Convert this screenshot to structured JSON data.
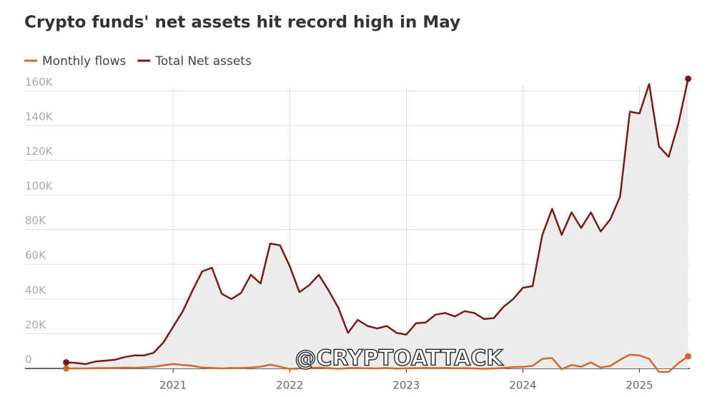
{
  "chart_data": {
    "type": "line",
    "title": "Crypto funds' net assets hit record high in May",
    "watermark": "@CRYPTOATTACK",
    "x": [
      2020.083,
      2020.167,
      2020.25,
      2020.333,
      2020.417,
      2020.5,
      2020.583,
      2020.667,
      2020.75,
      2020.833,
      2020.917,
      2021,
      2021.083,
      2021.167,
      2021.25,
      2021.333,
      2021.417,
      2021.5,
      2021.583,
      2021.667,
      2021.75,
      2021.833,
      2021.917,
      2022,
      2022.083,
      2022.167,
      2022.25,
      2022.333,
      2022.417,
      2022.5,
      2022.583,
      2022.667,
      2022.75,
      2022.833,
      2022.917,
      2023,
      2023.083,
      2023.167,
      2023.25,
      2023.333,
      2023.417,
      2023.5,
      2023.583,
      2023.667,
      2023.75,
      2023.833,
      2023.917,
      2024,
      2024.083,
      2024.167,
      2024.25,
      2024.333,
      2024.417,
      2024.5,
      2024.583,
      2024.667,
      2024.75,
      2024.833,
      2024.917,
      2025,
      2025.083,
      2025.167,
      2025.25,
      2025.333,
      2025.417
    ],
    "series": [
      {
        "name": "Monthly flows",
        "color": "#d4672c",
        "values": [
          0,
          0,
          0,
          200,
          200,
          300,
          500,
          400,
          600,
          1000,
          1800,
          2500,
          2000,
          1500,
          500,
          300,
          0,
          300,
          200,
          500,
          1000,
          2200,
          1000,
          -300,
          0,
          300,
          500,
          200,
          -200,
          200,
          300,
          100,
          0,
          300,
          -100,
          100,
          200,
          300,
          200,
          300,
          100,
          200,
          0,
          -200,
          0,
          300,
          800,
          900,
          1500,
          5500,
          6000,
          -500,
          2000,
          1000,
          3500,
          500,
          1500,
          5000,
          8000,
          7500,
          5500,
          -2000,
          -2000,
          3000,
          7000
        ]
      },
      {
        "name": "Total Net assets",
        "color": "#7a1a14",
        "area": true,
        "values": [
          3500,
          3200,
          2500,
          4000,
          4500,
          5000,
          6500,
          7500,
          7500,
          9000,
          15000,
          24000,
          33000,
          45000,
          56000,
          58000,
          43000,
          40000,
          43500,
          54000,
          49000,
          72000,
          71000,
          59000,
          44000,
          48000,
          54000,
          45000,
          35000,
          20500,
          28000,
          24500,
          23000,
          24500,
          20500,
          19500,
          26000,
          26500,
          31000,
          32000,
          30000,
          33000,
          32000,
          28500,
          29000,
          35500,
          40000,
          46500,
          47500,
          77000,
          92000,
          77000,
          90000,
          81000,
          90000,
          79000,
          86000,
          99000,
          148000,
          147000,
          164000,
          128000,
          122000,
          141000,
          167000
        ]
      }
    ],
    "xlim": [
      2019.73,
      2025.45
    ],
    "xticks": [
      2021,
      2022,
      2023,
      2024,
      2025
    ],
    "ylim": [
      0,
      170000
    ],
    "yticks": [
      {
        "value": 0,
        "label": "0"
      },
      {
        "value": 20000,
        "label": "20K"
      },
      {
        "value": 40000,
        "label": "40K"
      },
      {
        "value": 60000,
        "label": "60K"
      },
      {
        "value": 80000,
        "label": "80K"
      },
      {
        "value": 100000,
        "label": "100K"
      },
      {
        "value": 120000,
        "label": "120K"
      },
      {
        "value": 140000,
        "label": "140K"
      },
      {
        "value": 160000,
        "label": "160K"
      }
    ],
    "grid": true,
    "legend": "top-left"
  }
}
